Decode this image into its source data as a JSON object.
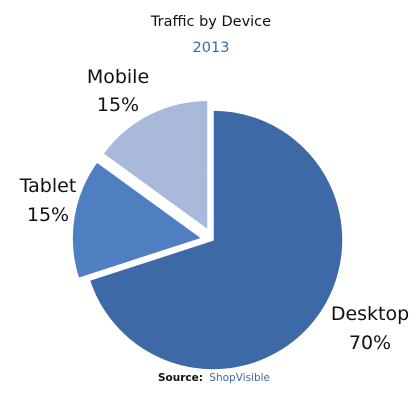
{
  "chart_data": {
    "type": "pie",
    "title": "Traffic by Device",
    "subtitle": "2013",
    "slices": [
      {
        "label": "Desktop",
        "value": 70,
        "value_label": "70%",
        "color": "#3d6aa6",
        "exploded": false
      },
      {
        "label": "Tablet",
        "value": 15,
        "value_label": "15%",
        "color": "#4f7fc1",
        "exploded": true
      },
      {
        "label": "Mobile",
        "value": 15,
        "value_label": "15%",
        "color": "#a8b9d9",
        "exploded": true
      }
    ],
    "source": {
      "label": "Source:",
      "value": "ShopVisible"
    },
    "colors": {
      "subtitle": "#3d6aa6",
      "source_value": "#3d6aa6",
      "text": "#111111"
    }
  }
}
